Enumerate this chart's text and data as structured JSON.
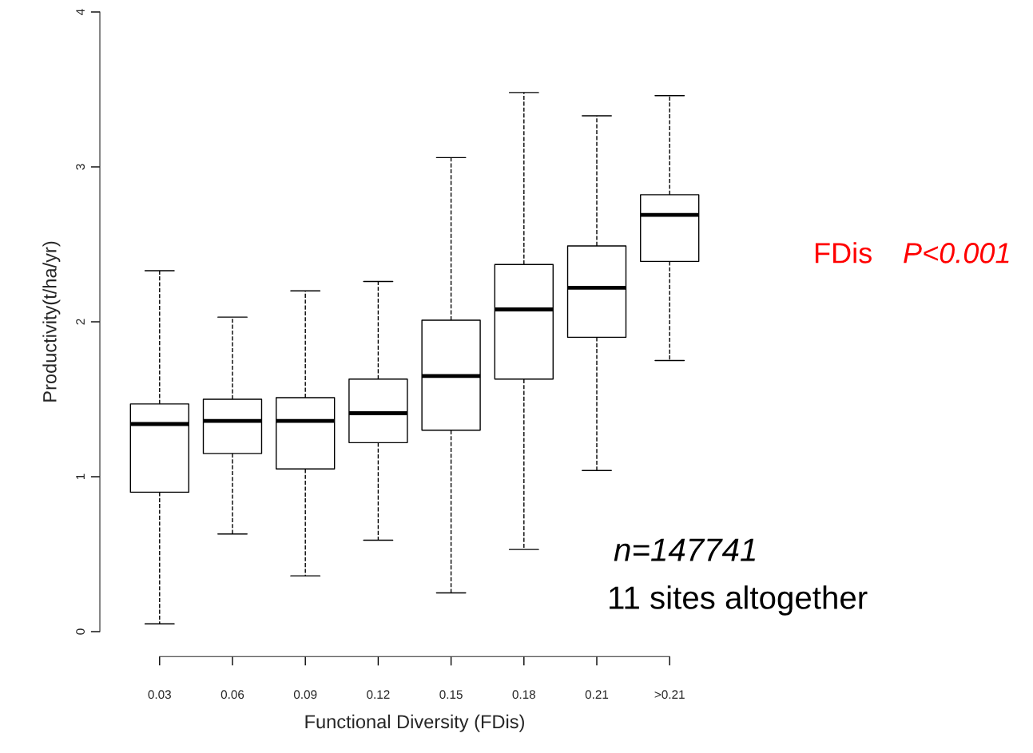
{
  "chart_data": {
    "type": "box",
    "xlabel": "Functional Diversity (FDis)",
    "ylabel": "Productivity(t/ha/yr)",
    "categories": [
      "0.03",
      "0.06",
      "0.09",
      "0.12",
      "0.15",
      "0.18",
      "0.21",
      ">0.21"
    ],
    "boxes": [
      {
        "low": 0.05,
        "q1": 0.9,
        "median": 1.34,
        "q3": 1.47,
        "high": 2.33
      },
      {
        "low": 0.63,
        "q1": 1.15,
        "median": 1.36,
        "q3": 1.5,
        "high": 2.03
      },
      {
        "low": 0.36,
        "q1": 1.05,
        "median": 1.36,
        "q3": 1.51,
        "high": 2.2
      },
      {
        "low": 0.59,
        "q1": 1.22,
        "median": 1.41,
        "q3": 1.63,
        "high": 2.26
      },
      {
        "low": 0.25,
        "q1": 1.3,
        "median": 1.65,
        "q3": 2.01,
        "high": 3.06
      },
      {
        "low": 0.53,
        "q1": 1.63,
        "median": 2.08,
        "q3": 2.37,
        "high": 3.48
      },
      {
        "low": 1.04,
        "q1": 1.9,
        "median": 2.22,
        "q3": 2.49,
        "high": 3.33
      },
      {
        "low": 1.75,
        "q1": 2.39,
        "median": 2.69,
        "q3": 2.82,
        "high": 3.46
      }
    ],
    "ylim": [
      0,
      4
    ],
    "yticks": [
      0,
      1,
      2,
      3,
      4
    ],
    "grid": false,
    "line_style": "dashed",
    "annotations": [
      "FDis",
      "P<0.001",
      "n=147741",
      "11 sites altogether"
    ]
  }
}
